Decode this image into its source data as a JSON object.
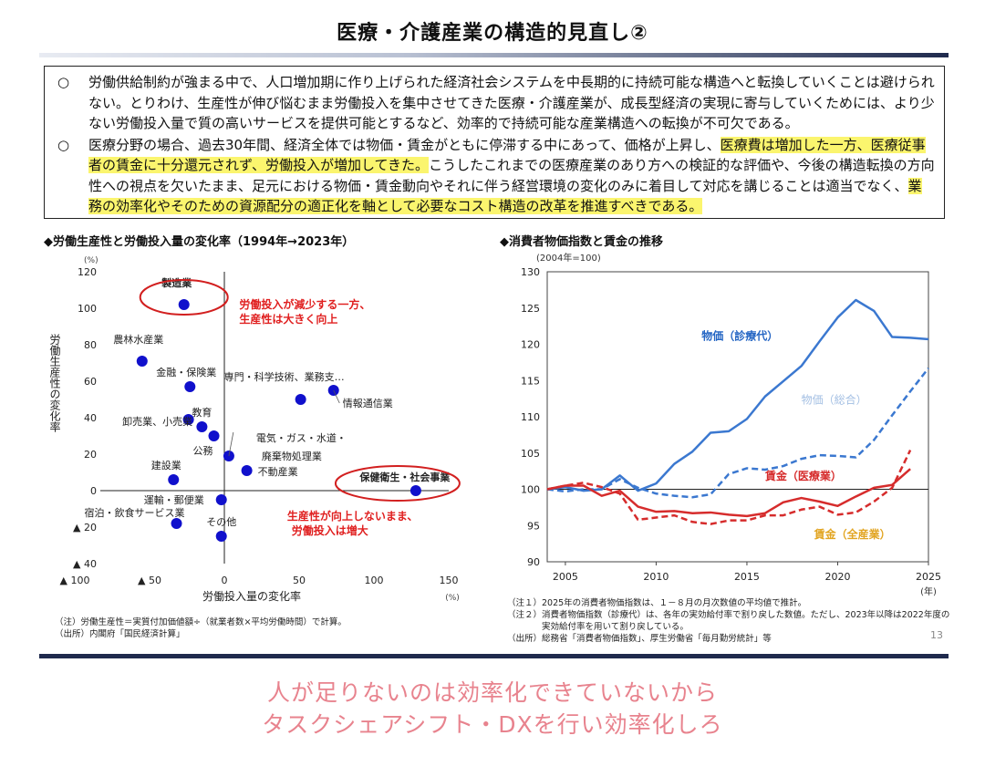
{
  "title": "医療・介護産業の構造的見直し②",
  "bullet_mark": "○",
  "para1": "労働供給制約が強まる中で、人口増加期に作り上げられた経済社会システムを中長期的に持続可能な構造へと転換していくことは避けられない。とりわけ、生産性が伸び悩むまま労働投入を集中させてきた医療・介護産業が、成長型経済の実現に寄与していくためには、より少ない労働投入量で質の高いサービスを提供可能とするなど、効率的で持続可能な産業構造への転換が不可欠である。",
  "para2": {
    "t1": "医療分野の場合、過去30年間、経済全体では物価・賃金がともに停滞する中にあって、価格が上昇し、",
    "h1": "医療費は増加した一方、医療従事者の賃金に十分還元されず、労働投入が増加してきた。",
    "t2": "こうしたこれまでの医療産業のあり方への検証的な評価や、今後の構造転換の方向性への視点を欠いたまま、足元における物価・賃金動向やそれに伴う経営環境の変化のみに着目して対応を講じることは適当でなく、",
    "h2": "業務の効率化やそのための資源配分の適正化を軸として必要なコスト構造の改革を推進すべきである。"
  },
  "chart_data": [
    {
      "type": "scatter",
      "title": "◆労働生産性と労働投入量の変化率（1994年→2023年）",
      "xlabel": "労働投入量の変化率",
      "ylabel": "労働生産性の変化率",
      "x_unit": "(%)",
      "y_unit": "(%)",
      "xlim": [
        -100,
        150
      ],
      "ylim": [
        -40,
        120
      ],
      "x_ticks": [
        {
          "v": -100,
          "label": "▲ 100"
        },
        {
          "v": -50,
          "label": "▲ 50"
        },
        {
          "v": 0,
          "label": "0"
        },
        {
          "v": 50,
          "label": "50"
        },
        {
          "v": 100,
          "label": "100"
        },
        {
          "v": 150,
          "label": "150"
        }
      ],
      "y_ticks": [
        {
          "v": 120,
          "label": "120"
        },
        {
          "v": 100,
          "label": "100"
        },
        {
          "v": 80,
          "label": "80"
        },
        {
          "v": 60,
          "label": "60"
        },
        {
          "v": 40,
          "label": "40"
        },
        {
          "v": 20,
          "label": "20"
        },
        {
          "v": 0,
          "label": "0"
        },
        {
          "v": -20,
          "label": "▲ 20"
        },
        {
          "v": -40,
          "label": "▲ 40"
        }
      ],
      "points": [
        {
          "label": "製造業",
          "x": -27,
          "y": 102,
          "bold": true
        },
        {
          "label": "農林水産業",
          "x": -55,
          "y": 71
        },
        {
          "label": "金融・保険業",
          "x": -23,
          "y": 57
        },
        {
          "label": "専門・科学技術、業務支…",
          "x": 51,
          "y": 50
        },
        {
          "label": "情報通信業",
          "x": 73,
          "y": 55
        },
        {
          "label": "卸売業、小売業",
          "x": -24,
          "y": 39
        },
        {
          "label": "教育",
          "x": -15,
          "y": 35
        },
        {
          "label": "公務",
          "x": -7,
          "y": 30
        },
        {
          "label": "電気・ガス・水道・廃棄物処理業",
          "x": 3,
          "y": 19
        },
        {
          "label": "不動産業",
          "x": 15,
          "y": 11
        },
        {
          "label": "建設業",
          "x": -34,
          "y": 6
        },
        {
          "label": "保健衛生・社会事業",
          "x": 128,
          "y": 0,
          "bold": true
        },
        {
          "label": "運輸・郵便業",
          "x": -2,
          "y": -5
        },
        {
          "label": "宿泊・飲食サービス業",
          "x": -32,
          "y": -18
        },
        {
          "label": "その他",
          "x": -2,
          "y": -25
        }
      ],
      "annotations": [
        "労働投入が減少する一方、",
        "生産性は大きく向上",
        "生産性が向上しないまま、",
        "労働投入は増大"
      ],
      "notes": [
        "（注）労働生産性＝実質付加価値額÷（就業者数×平均労働時間）で計算。",
        "（出所）内閣府「国民経済計算」"
      ]
    },
    {
      "type": "line",
      "title": "◆消費者物価指数と賃金の推移",
      "y_unit": "(2004年=100)",
      "x_unit": "(年)",
      "xlim": [
        2004,
        2025
      ],
      "ylim": [
        90,
        130
      ],
      "x_ticks": [
        2005,
        2010,
        2015,
        2020,
        2025
      ],
      "y_ticks": [
        90,
        95,
        100,
        105,
        110,
        115,
        120,
        125,
        130
      ],
      "baseline": 100,
      "series": [
        {
          "name": "物価（診療代）",
          "color": "#3b78d0",
          "style": "solid",
          "x": [
            2004,
            2005,
            2006,
            2007,
            2008,
            2009,
            2010,
            2011,
            2012,
            2013,
            2014,
            2015,
            2016,
            2017,
            2018,
            2019,
            2020,
            2021,
            2022,
            2023,
            2024,
            2025
          ],
          "values": [
            100,
            100.3,
            99.8,
            100,
            101.9,
            99.8,
            100.8,
            103.5,
            105.2,
            107.8,
            108,
            109.7,
            112.8,
            114.9,
            117,
            120.4,
            123.7,
            126.1,
            124.6,
            121,
            120.9,
            120.7
          ]
        },
        {
          "name": "物価（総合）",
          "color": "#3b78d0",
          "style": "dashed",
          "x": [
            2004,
            2005,
            2006,
            2007,
            2008,
            2009,
            2010,
            2011,
            2012,
            2013,
            2014,
            2015,
            2016,
            2017,
            2018,
            2019,
            2020,
            2021,
            2022,
            2023,
            2024,
            2025
          ],
          "values": [
            100,
            99.7,
            100,
            100,
            101.4,
            100.2,
            99.4,
            99.1,
            98.9,
            99.3,
            102.1,
            102.9,
            102.7,
            103.2,
            104.2,
            104.7,
            104.6,
            104.4,
            106.8,
            110.2,
            113.5,
            116.7
          ]
        },
        {
          "name": "賃金（医療業）",
          "color": "#d62c2c",
          "style": "solid",
          "x": [
            2004,
            2005,
            2006,
            2007,
            2008,
            2009,
            2010,
            2011,
            2012,
            2013,
            2014,
            2015,
            2016,
            2017,
            2018,
            2019,
            2020,
            2021,
            2022,
            2023,
            2024
          ],
          "values": [
            100,
            100.5,
            100.5,
            99.1,
            99.8,
            97.6,
            96.9,
            97,
            96.7,
            96.8,
            96.5,
            96.3,
            96.7,
            98.2,
            98.8,
            98.3,
            97.7,
            99,
            100.2,
            100.6,
            102.8
          ]
        },
        {
          "name": "賃金（全産業）",
          "color": "#d62c2c",
          "style": "dashed",
          "x": [
            2004,
            2005,
            2006,
            2007,
            2008,
            2009,
            2010,
            2011,
            2012,
            2013,
            2014,
            2015,
            2016,
            2017,
            2018,
            2019,
            2020,
            2021,
            2022,
            2023,
            2024
          ],
          "values": [
            100,
            100.5,
            100.9,
            100.3,
            99.4,
            95.8,
            96.1,
            96.4,
            95.5,
            95.2,
            95.7,
            95.7,
            96.4,
            96.4,
            97.2,
            97.6,
            96.5,
            96.8,
            98.3,
            100.2,
            105.4
          ]
        }
      ],
      "series_labels": {
        "price_medical": "物価（診療代）",
        "price_total": "物価（総合）",
        "wage_medical": "賃金（医療業）",
        "wage_all": "賃金（全産業）"
      },
      "label_colors": {
        "price_medical": "#2566c4",
        "price_total": "#a3bfe3",
        "wage_medical": "#d62c2c",
        "wage_all": "#e2a522"
      },
      "notes": [
        "（注１）2025年の消費者物価指数は、１－８月の月次数値の平均値で推計。",
        "（注２）消費者物価指数（診療代）は、各年の実効給付率で割り戻した数値。ただし、2023年以降は2022年度の",
        "　　　　実効給付率を用いて割り戻している。",
        "（出所）総務省「消費者物価指数」、厚生労働省「毎月勤労統計」等"
      ]
    }
  ],
  "page_number": "13",
  "caption": [
    "人が足りないのは効率化できていないから",
    "タスクシェアシフト・DXを行い効率化しろ"
  ],
  "colors": {
    "point": "#1010cc",
    "annotation": "#e02020",
    "highlight": "#fbf56e",
    "caption": "#e8838e"
  }
}
